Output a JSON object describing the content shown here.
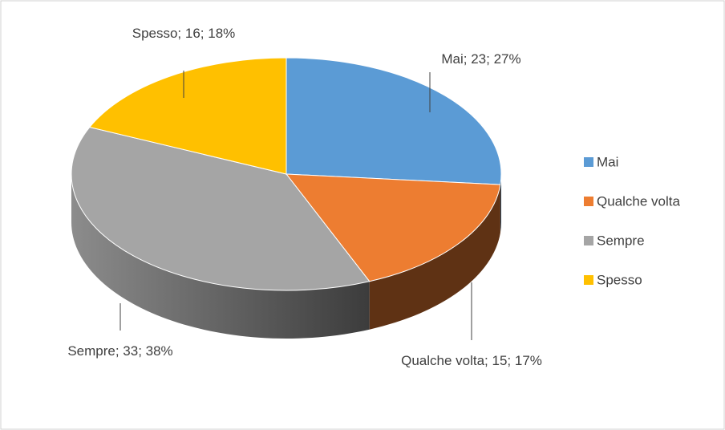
{
  "chart_data": {
    "type": "pie3d",
    "categories": [
      "Mai",
      "Qualche volta",
      "Sempre",
      "Spesso"
    ],
    "values": [
      23,
      15,
      33,
      16
    ],
    "value_labels": [
      "Mai; 23; 27%",
      "Qualche volta; 15; 17%",
      "Sempre; 33; 38%",
      "Spesso; 16; 18%"
    ],
    "colors": [
      "#5b9bd5",
      "#ed7d31",
      "#a5a5a5",
      "#ffc000"
    ],
    "legend": "right"
  }
}
